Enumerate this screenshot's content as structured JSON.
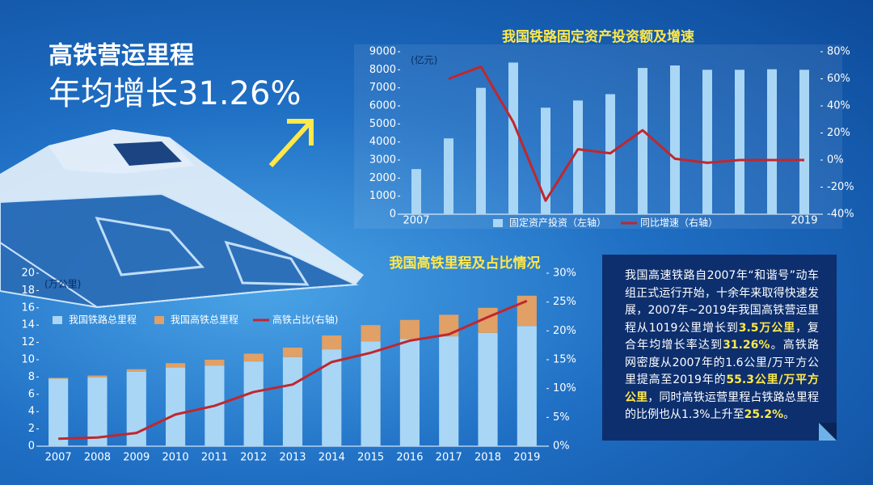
{
  "header": {
    "line1": "高铁营运里程",
    "line2": "年均增长31.26%"
  },
  "chart_data": [
    {
      "type": "combo",
      "title": "我国铁路固定资产投资额及增速",
      "y_label": "(亿元)",
      "categories": [
        "2007",
        null,
        null,
        null,
        null,
        null,
        null,
        null,
        null,
        null,
        null,
        null,
        "2019"
      ],
      "series": [
        {
          "name": "固定资产投资（左轴）",
          "type": "bar",
          "color": "#a9d6f5",
          "values": [
            2500,
            4200,
            7000,
            8400,
            5900,
            6300,
            6650,
            8100,
            8240,
            8000,
            8000,
            8030,
            8000
          ]
        },
        {
          "name": "同比增速（右轴）",
          "type": "line",
          "axis": "y2",
          "color": "#c0272d",
          "values": [
            null,
            60,
            69,
            28,
            -30,
            8,
            5,
            22,
            1,
            -2,
            0,
            0,
            0
          ]
        }
      ],
      "ylim": [
        0,
        9000
      ],
      "yticks": [
        0,
        1000,
        2000,
        3000,
        4000,
        5000,
        6000,
        7000,
        8000,
        9000
      ],
      "y2lim": [
        -40,
        80
      ],
      "y2ticks": [
        {
          "value": -40,
          "label": "-40%"
        },
        {
          "value": -20,
          "label": "-20%"
        },
        {
          "value": 0,
          "label": "0%"
        },
        {
          "value": 20,
          "label": "20%"
        },
        {
          "value": 40,
          "label": "40%"
        },
        {
          "value": 60,
          "label": "60%"
        },
        {
          "value": 80,
          "label": "80%"
        }
      ],
      "legend": "bottom",
      "stacked": false
    },
    {
      "type": "combo",
      "title": "我国高铁里程及占比情况",
      "y_label": "(万公里)",
      "categories": [
        "2007",
        "2008",
        "2009",
        "2010",
        "2011",
        "2012",
        "2013",
        "2014",
        "2015",
        "2016",
        "2017",
        "2018",
        "2019"
      ],
      "series": [
        {
          "name": "我国铁路总里程",
          "type": "bar",
          "color": "#a9d6f5",
          "values": [
            7.8,
            7.97,
            8.6,
            9.1,
            9.3,
            9.8,
            10.3,
            11.2,
            12.1,
            12.4,
            12.7,
            13.1,
            13.9
          ]
        },
        {
          "name": "我国高铁总里程",
          "type": "bar",
          "color": "#e0a066",
          "values": [
            0.1,
            0.2,
            0.3,
            0.5,
            0.7,
            0.9,
            1.1,
            1.6,
            1.9,
            2.2,
            2.5,
            2.9,
            3.5
          ]
        },
        {
          "name": "高铁占比(右轴)",
          "type": "line",
          "axis": "y2",
          "color": "#c0272d",
          "values": [
            1.3,
            1.5,
            2.3,
            5.5,
            7.0,
            9.4,
            10.7,
            14.6,
            16.2,
            18.3,
            19.4,
            22.4,
            25.2
          ]
        }
      ],
      "ylim": [
        0,
        20
      ],
      "yticks": [
        0,
        2,
        4,
        6,
        8,
        10,
        12,
        14,
        16,
        18,
        20
      ],
      "y2lim": [
        0,
        30
      ],
      "y2ticks": [
        {
          "value": 0,
          "label": "0%"
        },
        {
          "value": 5,
          "label": "5%"
        },
        {
          "value": 10,
          "label": "10%"
        },
        {
          "value": 15,
          "label": "15%"
        },
        {
          "value": 20,
          "label": "20%"
        },
        {
          "value": 25,
          "label": "25%"
        },
        {
          "value": 30,
          "label": "30%"
        }
      ],
      "legend": "top-left",
      "stacked": true
    }
  ],
  "note": {
    "runs": [
      {
        "text": "我国高速铁路自2007年“和谐号”动车组正式运行开始，十余年来取得快速发展，2007年~2019年我国高铁营运里程从1019公里增长到",
        "color": "#ffffff"
      },
      {
        "text": "3.5万公里",
        "color": "#ffe84a"
      },
      {
        "text": "，复合年均增长率达到",
        "color": "#ffffff"
      },
      {
        "text": "31.26%",
        "color": "#ffe84a"
      },
      {
        "text": "。高铁路网密度从2007年的1.6公里/万平方公里提高至2019年的",
        "color": "#ffffff"
      },
      {
        "text": "55.3公里/万平方公里",
        "color": "#ffe84a"
      },
      {
        "text": "，同时高铁运营里程占铁路总里程的比例也从1.3%上升至",
        "color": "#ffffff"
      },
      {
        "text": "25.2%",
        "color": "#ffe84a"
      },
      {
        "text": "。",
        "color": "#ffffff"
      }
    ]
  }
}
